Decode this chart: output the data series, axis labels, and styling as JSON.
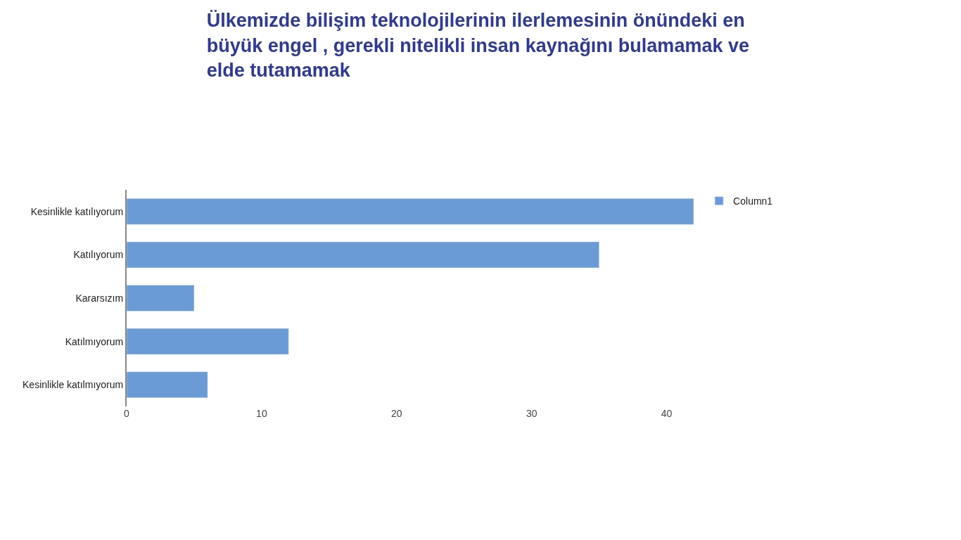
{
  "chart_data": {
    "type": "bar",
    "orientation": "horizontal",
    "title": "Ülkemizde bilişim teknolojilerinin ilerlemesinin önündeki en büyük engel , gerekli nitelikli insan kaynağını bulamamak ve elde tutamamak",
    "categories": [
      "Kesinlikle katılıyorum",
      "Katılıyorum",
      "Kararsızım",
      "Katılmıyorum",
      "Kesinlikle katılmıyorum"
    ],
    "series": [
      {
        "name": "Column1",
        "color": "#6a9bd4",
        "values": [
          42,
          35,
          5,
          12,
          6
        ]
      }
    ],
    "xlim": [
      0,
      42
    ],
    "xticks": [
      0,
      10,
      20,
      30,
      40
    ],
    "legend": "top right"
  }
}
